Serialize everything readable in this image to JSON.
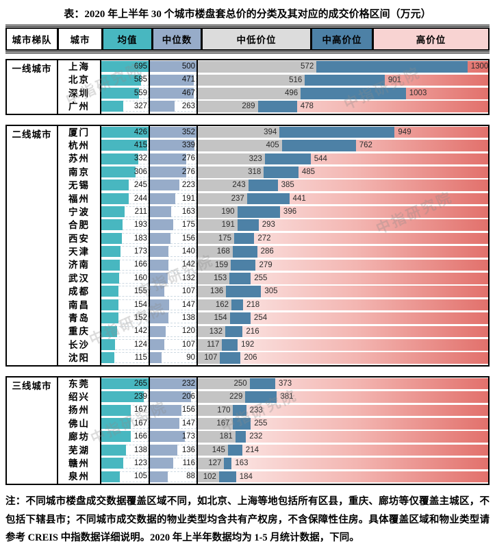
{
  "title": "表：2020 年上半年 30 个城市楼盘套总价的分类及其对应的成交价格区间（万元）",
  "watermark": "中指研究院",
  "note": "注：不同城市楼盘成交数据覆盖区域不同，如北京、上海等地包括所有区县，重庆、廊坊等仅覆盖主城区，不包括下辖县市；不同城市成交数据的物业类型均含共有产权房，不含保障性住房。具体覆盖区域和物业类型请参考 CREIS 中指数据详细说明。2020 年上半年数据均为 1-5 月统计数据，下同。",
  "colors": {
    "mean_teal": "#48b7c0",
    "median_blue": "#97acc9",
    "low_gray_bar": "#c4c4c4",
    "mid_high_blue": "#4d81a6",
    "header_low_gray": "#dcdcdc",
    "header_high_pink": "#f8d3d2",
    "high_gradient_start": "#fdf1f0",
    "high_gradient_end": "#e2716c"
  },
  "chart_data": {
    "type": "table",
    "title": "2020 年上半年 30 个城市楼盘套总价的分类及其对应的成交价格区间（万元）",
    "unit": "万元",
    "columns": [
      "城市梯队",
      "城市",
      "均值",
      "中位数",
      "中低价位",
      "中高价位",
      "高价位"
    ],
    "range_axis_max": 1400,
    "tiers": [
      {
        "name": "一线城市",
        "cities": [
          {
            "city": "上海",
            "mean": 695,
            "median": 500,
            "mid_low": 572,
            "mid_high": 1300
          },
          {
            "city": "北京",
            "mean": 585,
            "median": 471,
            "mid_low": 516,
            "mid_high": 901
          },
          {
            "city": "深圳",
            "mean": 559,
            "median": 467,
            "mid_low": 496,
            "mid_high": 1003
          },
          {
            "city": "广州",
            "mean": 327,
            "median": 263,
            "mid_low": 289,
            "mid_high": 478
          }
        ]
      },
      {
        "name": "二线城市",
        "cities": [
          {
            "city": "厦门",
            "mean": 426,
            "median": 352,
            "mid_low": 394,
            "mid_high": 949
          },
          {
            "city": "杭州",
            "mean": 415,
            "median": 339,
            "mid_low": 405,
            "mid_high": 762
          },
          {
            "city": "苏州",
            "mean": 332,
            "median": 276,
            "mid_low": 323,
            "mid_high": 544
          },
          {
            "city": "南京",
            "mean": 306,
            "median": 276,
            "mid_low": 318,
            "mid_high": 485
          },
          {
            "city": "无锡",
            "mean": 245,
            "median": 223,
            "mid_low": 243,
            "mid_high": 385
          },
          {
            "city": "福州",
            "mean": 244,
            "median": 191,
            "mid_low": 237,
            "mid_high": 441
          },
          {
            "city": "宁波",
            "mean": 211,
            "median": 163,
            "mid_low": 190,
            "mid_high": 396
          },
          {
            "city": "合肥",
            "mean": 193,
            "median": 175,
            "mid_low": 191,
            "mid_high": 293
          },
          {
            "city": "西安",
            "mean": 183,
            "median": 156,
            "mid_low": 175,
            "mid_high": 272
          },
          {
            "city": "天津",
            "mean": 173,
            "median": 140,
            "mid_low": 168,
            "mid_high": 286
          },
          {
            "city": "济南",
            "mean": 166,
            "median": 142,
            "mid_low": 159,
            "mid_high": 279
          },
          {
            "city": "武汉",
            "mean": 160,
            "median": 132,
            "mid_low": 153,
            "mid_high": 255
          },
          {
            "city": "成都",
            "mean": 155,
            "median": 107,
            "mid_low": 136,
            "mid_high": 305
          },
          {
            "city": "南昌",
            "mean": 154,
            "median": 147,
            "mid_low": 162,
            "mid_high": 218
          },
          {
            "city": "青岛",
            "mean": 152,
            "median": 138,
            "mid_low": 154,
            "mid_high": 254
          },
          {
            "city": "重庆",
            "mean": 142,
            "median": 120,
            "mid_low": 132,
            "mid_high": 216
          },
          {
            "city": "长沙",
            "mean": 124,
            "median": 107,
            "mid_low": 117,
            "mid_high": 192
          },
          {
            "city": "沈阳",
            "mean": 115,
            "median": 90,
            "mid_low": 107,
            "mid_high": 206
          }
        ]
      },
      {
        "name": "三线城市",
        "cities": [
          {
            "city": "东莞",
            "mean": 265,
            "median": 232,
            "mid_low": 250,
            "mid_high": 373
          },
          {
            "city": "绍兴",
            "mean": 239,
            "median": 206,
            "mid_low": 229,
            "mid_high": 381
          },
          {
            "city": "扬州",
            "mean": 167,
            "median": 156,
            "mid_low": 170,
            "mid_high": 233
          },
          {
            "city": "佛山",
            "mean": 167,
            "median": 147,
            "mid_low": 167,
            "mid_high": 255
          },
          {
            "city": "廊坊",
            "mean": 166,
            "median": 173,
            "mid_low": 181,
            "mid_high": 232
          },
          {
            "city": "芜湖",
            "mean": 138,
            "median": 136,
            "mid_low": 145,
            "mid_high": 214
          },
          {
            "city": "赣州",
            "mean": 123,
            "median": 116,
            "mid_low": 127,
            "mid_high": 163
          },
          {
            "city": "泉州",
            "mean": 105,
            "median": 88,
            "mid_low": 102,
            "mid_high": 184
          }
        ]
      }
    ]
  }
}
